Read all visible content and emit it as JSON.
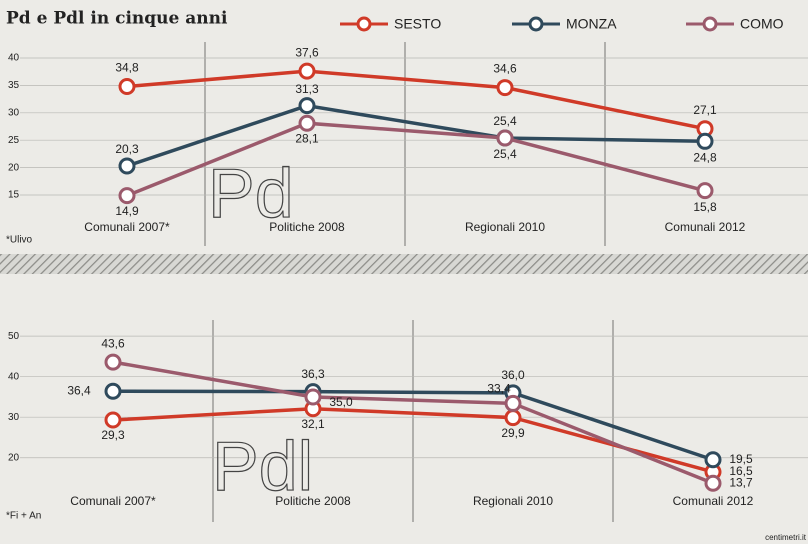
{
  "title": "Pd e Pdl in cinque anni",
  "credit": "centimetri.it",
  "chart_data": [
    {
      "type": "line",
      "label": "Pd",
      "footnote": "*Ulivo",
      "categories": [
        "Comunali 2007*",
        "Politiche 2008",
        "Regionali 2010",
        "Comunali 2012"
      ],
      "series": [
        {
          "name": "SESTO",
          "color": "#d03a28",
          "values": [
            34.8,
            37.6,
            34.6,
            27.1
          ],
          "value_labels": [
            "34,8",
            "37,6",
            "34,6",
            "27,1"
          ]
        },
        {
          "name": "MONZA",
          "color": "#2f4a5c",
          "values": [
            20.3,
            31.3,
            25.4,
            24.8
          ],
          "value_labels": [
            "20,3",
            "31,3",
            "25,4",
            "24,8"
          ]
        },
        {
          "name": "COMO",
          "color": "#9b5a6c",
          "values": [
            14.9,
            28.1,
            25.4,
            15.8
          ],
          "value_labels": [
            "14,9",
            "28,1",
            "25,4",
            "15,8"
          ]
        }
      ],
      "ylim": [
        13,
        42
      ],
      "yticks": [
        15,
        20,
        25,
        30,
        35,
        40
      ],
      "grid": true
    },
    {
      "type": "line",
      "label": "Pdl",
      "footnote": "*Fi + An",
      "categories": [
        "Comunali 2007*",
        "Politiche 2008",
        "Regionali 2010",
        "Comunali 2012"
      ],
      "series": [
        {
          "name": "SESTO",
          "color": "#d03a28",
          "values": [
            29.3,
            32.1,
            29.9,
            16.5
          ],
          "value_labels": [
            "29,3",
            "32,1",
            "29,9",
            "16,5"
          ]
        },
        {
          "name": "MONZA",
          "color": "#2f4a5c",
          "values": [
            36.4,
            36.3,
            36.0,
            19.5
          ],
          "value_labels": [
            "36,4",
            "36,3",
            "36,0",
            "19,5"
          ]
        },
        {
          "name": "COMO",
          "color": "#9b5a6c",
          "values": [
            43.6,
            35.0,
            33.4,
            13.7
          ],
          "value_labels": [
            "43,6",
            "35,0",
            "33,4",
            "13,7"
          ]
        }
      ],
      "ylim": [
        15,
        53
      ],
      "yticks": [
        20,
        30,
        40,
        50
      ],
      "grid": true
    }
  ]
}
